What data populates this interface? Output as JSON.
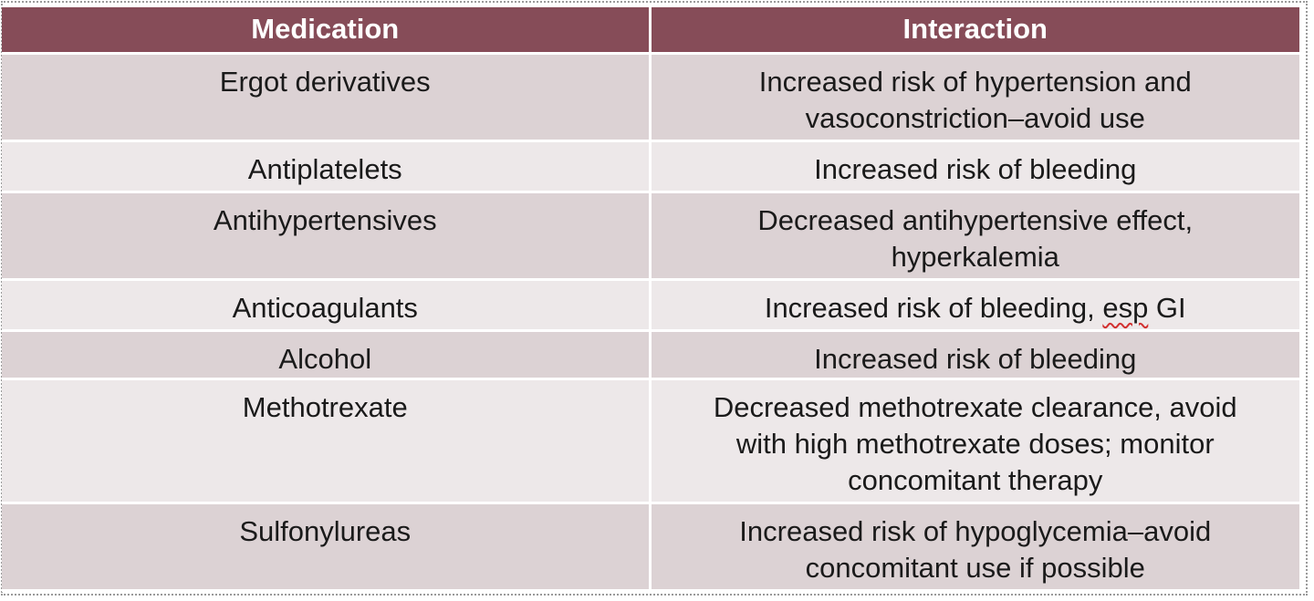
{
  "table": {
    "headers": {
      "medication": "Medication",
      "interaction": "Interaction"
    },
    "rows": [
      {
        "medication": "Ergot derivatives",
        "interaction_lines": [
          "Increased risk of hypertension and",
          "vasoconstriction–avoid use"
        ]
      },
      {
        "medication": "Antiplatelets",
        "interaction_lines": [
          "Increased risk of bleeding"
        ]
      },
      {
        "medication": "Antihypertensives",
        "interaction_lines": [
          "Decreased antihypertensive effect,",
          "hyperkalemia"
        ]
      },
      {
        "medication": "Anticoagulants",
        "interaction_prefix": "Increased risk of bleeding, ",
        "interaction_flagged": "esp",
        "interaction_suffix": " GI"
      },
      {
        "medication": "Alcohol",
        "interaction_lines": [
          "Increased risk of bleeding"
        ]
      },
      {
        "medication": "Methotrexate",
        "interaction_lines": [
          "Decreased methotrexate clearance, avoid",
          "with high methotrexate doses; monitor",
          "concomitant therapy"
        ]
      },
      {
        "medication": "Sulfonylureas",
        "interaction_lines": [
          "Increased risk of hypoglycemia–avoid",
          "concomitant use if possible"
        ]
      }
    ]
  },
  "colors": {
    "header_bg": "#864c58",
    "row_dark": "#dcd2d4",
    "row_light": "#ede8e9",
    "spellcheck_underline": "#d23030"
  }
}
